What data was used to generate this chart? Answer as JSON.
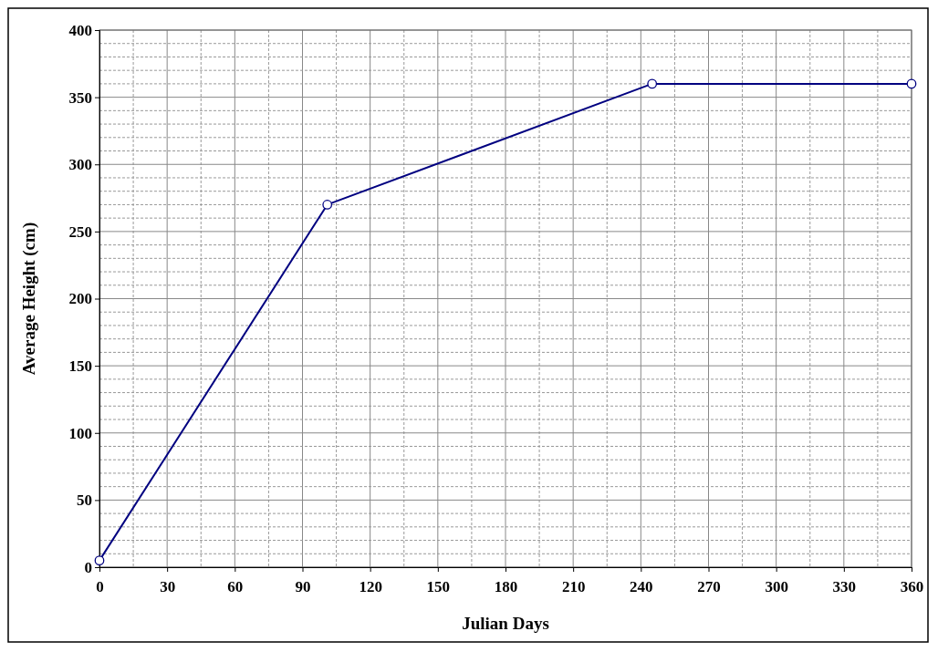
{
  "chart_data": {
    "type": "line",
    "xlabel": "Julian Days",
    "ylabel": "Average Height (cm)",
    "x": [
      0,
      101,
      245,
      360
    ],
    "series": [
      {
        "color": "#000080",
        "values": [
          5,
          270,
          360,
          360
        ]
      }
    ],
    "xlim": [
      0,
      360
    ],
    "ylim": [
      0,
      400
    ],
    "xticks": [
      0,
      30,
      60,
      90,
      120,
      150,
      180,
      210,
      240,
      270,
      300,
      330,
      360
    ],
    "yticks": [
      0,
      50,
      100,
      150,
      200,
      250,
      300,
      350,
      400
    ],
    "grid": true,
    "marker": "circle",
    "line_style": "solid"
  }
}
